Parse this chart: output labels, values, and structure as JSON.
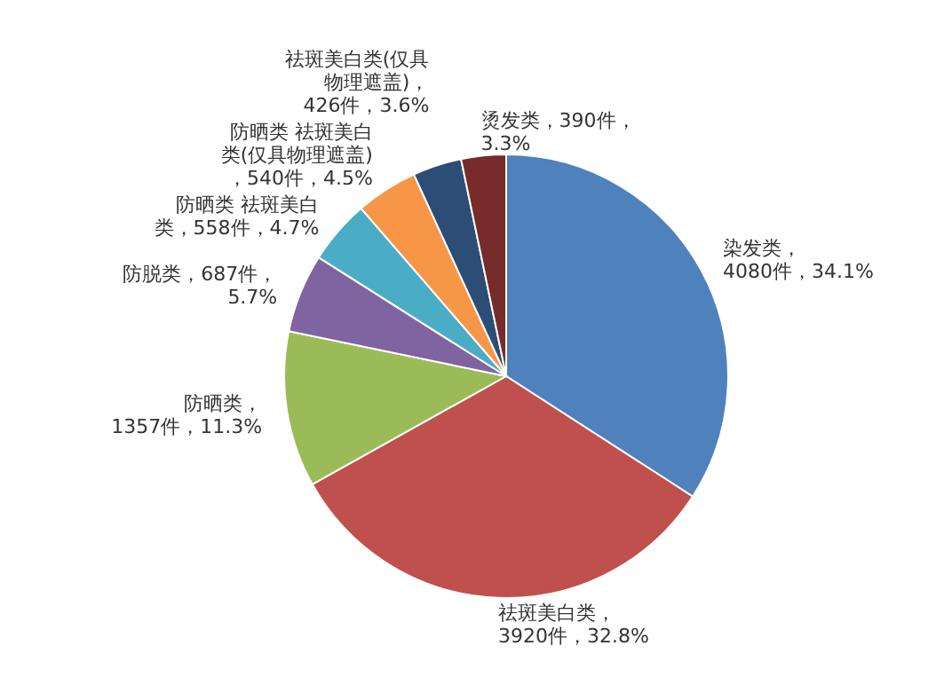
{
  "chart_data": {
    "type": "pie",
    "categories": [
      "染发类",
      "祛斑美白类",
      "防晒类",
      "防脱类",
      "防晒类  祛斑美白类",
      "防晒类  祛斑美白类(仅具物理遮盖)",
      "祛斑美白类(仅具物理遮盖)",
      "烫发类"
    ],
    "values": [
      4080,
      3920,
      1357,
      687,
      558,
      540,
      426,
      390
    ],
    "value_labels": [
      "，4080件，34.1%",
      "，3920件，32.8%",
      "，1357件，11.3%",
      "，687件，5.7%",
      "，558件，4.7%",
      "，540件，4.5%",
      "，426件，3.6%",
      "，390件，3.3%"
    ],
    "colors": [
      "#4f81bd",
      "#c0504d",
      "#9bbb59",
      "#8064a2",
      "#4bacc6",
      "#f79646",
      "#2c4d75",
      "#772c2a"
    ]
  }
}
